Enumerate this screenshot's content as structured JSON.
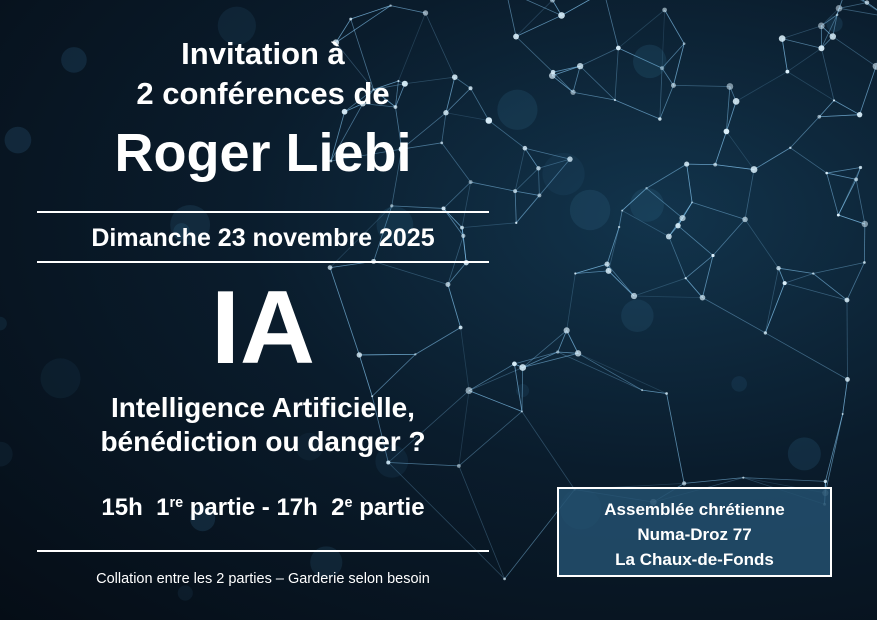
{
  "invitation": {
    "line1": "Invitation à",
    "line2": "2 conférences de",
    "speaker": "Roger Liebi"
  },
  "date": "Dimanche 23 novembre 2025",
  "topic": {
    "title": "IA",
    "subtitle_line1": "Intelligence Artificielle,",
    "subtitle_line2": "bénédiction ou danger ?"
  },
  "schedule": {
    "time1": "15h",
    "part1_num": "1",
    "part1_sup": "re",
    "part1_label": "partie -",
    "time2": "17h",
    "part2_num": "2",
    "part2_sup": "e",
    "part2_label": "partie"
  },
  "footer_note": "Collation entre les 2 parties – Garderie selon besoin",
  "venue": {
    "name": "Assemblée chrétienne",
    "street": "Numa-Droz 77",
    "city": "La Chaux-de-Fonds"
  },
  "colors": {
    "background": "#0a1c2c",
    "network": "#8fd3ff",
    "venue_box": "#23506e"
  }
}
